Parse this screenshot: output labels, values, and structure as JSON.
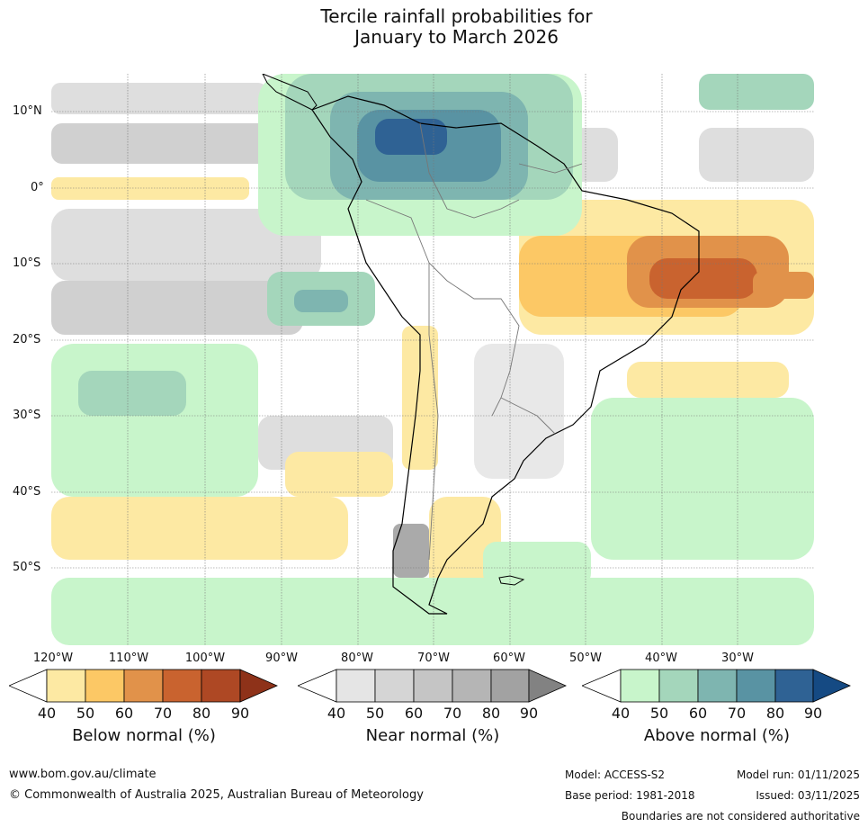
{
  "title": {
    "line1": "Tercile rainfall probabilities for",
    "line2": "January to March 2026"
  },
  "map": {
    "latitude_labels": [
      "10°N",
      "0°",
      "10°S",
      "20°S",
      "30°S",
      "40°S",
      "50°S"
    ],
    "longitude_labels": [
      "120°W",
      "110°W",
      "100°W",
      "90°W",
      "80°W",
      "70°W",
      "60°W",
      "50°W",
      "40°W",
      "30°W"
    ]
  },
  "legends": [
    {
      "title": "Below normal (%)",
      "ticks": [
        "40",
        "50",
        "60",
        "70",
        "80",
        "90"
      ],
      "colors": [
        "#ffffff",
        "#fde9a3",
        "#fcc865",
        "#e1924a",
        "#c9632f",
        "#ae4824",
        "#8e3219"
      ]
    },
    {
      "title": "Near normal (%)",
      "ticks": [
        "40",
        "50",
        "60",
        "70",
        "80",
        "90"
      ],
      "colors": [
        "#ffffff",
        "#e5e5e5",
        "#d5d5d5",
        "#c5c5c5",
        "#b5b5b5",
        "#a2a2a2",
        "#828282"
      ]
    },
    {
      "title": "Above normal (%)",
      "ticks": [
        "40",
        "50",
        "60",
        "70",
        "80",
        "90"
      ],
      "colors": [
        "#ffffff",
        "#c8f5cb",
        "#a4d6bb",
        "#7eb5b0",
        "#5993a3",
        "#2f6294",
        "#154a83"
      ]
    }
  ],
  "footer": {
    "website": "www.bom.gov.au/climate",
    "copyright": "© Commonwealth of Australia 2025, Australian Bureau of Meteorology",
    "model": "Model: ACCESS-S2",
    "base_period": "Base period: 1981-2018",
    "model_run": "Model run: 01/11/2025",
    "issued": "Issued: 03/11/2025",
    "disclaimer": "Boundaries are not considered authoritative"
  }
}
